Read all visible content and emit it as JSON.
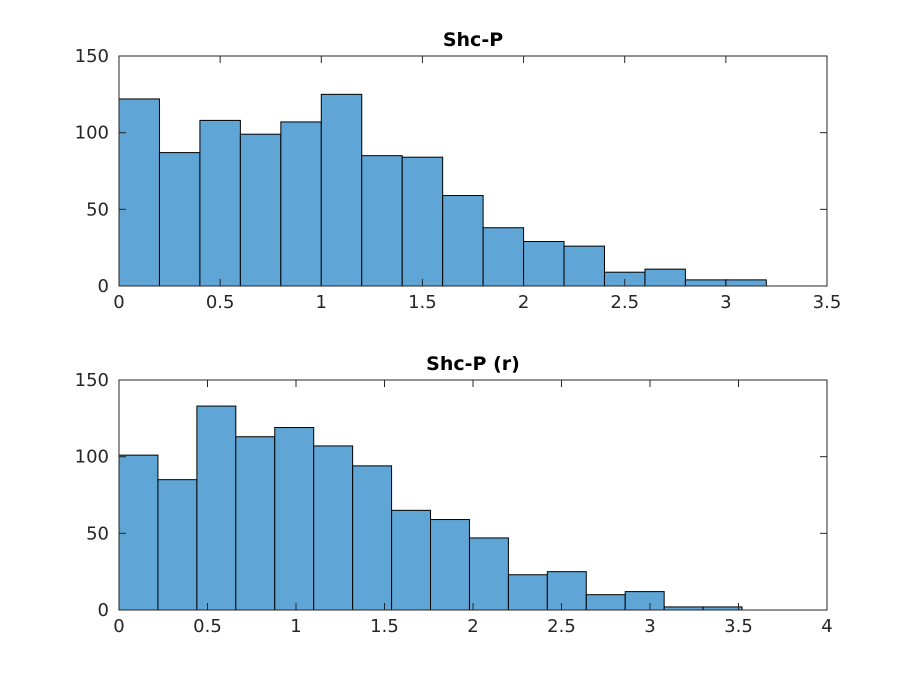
{
  "chart_data": [
    {
      "type": "bar",
      "subtype": "histogram",
      "title": "Shc-P",
      "xlabel": "",
      "ylabel": "",
      "xlim": [
        0,
        3.5
      ],
      "ylim": [
        0,
        150
      ],
      "xticks": [
        "0",
        "0.5",
        "1",
        "1.5",
        "2",
        "2.5",
        "3",
        "3.5"
      ],
      "yticks": [
        "0",
        "50",
        "100",
        "150"
      ],
      "bin_width": 0.2,
      "bin_edges": [
        0,
        0.2,
        0.4,
        0.6,
        0.8,
        1.0,
        1.2,
        1.4,
        1.6,
        1.8,
        2.0,
        2.2,
        2.4,
        2.6,
        2.8,
        3.0,
        3.2
      ],
      "values": [
        122,
        87,
        108,
        99,
        107,
        125,
        85,
        84,
        59,
        38,
        29,
        26,
        9,
        11,
        4,
        4
      ],
      "color": "#5fa5d6"
    },
    {
      "type": "bar",
      "subtype": "histogram",
      "title": "Shc-P (r)",
      "xlabel": "",
      "ylabel": "",
      "xlim": [
        0,
        4
      ],
      "ylim": [
        0,
        150
      ],
      "xticks": [
        "0",
        "0.5",
        "1",
        "1.5",
        "2",
        "2.5",
        "3",
        "3.5",
        "4"
      ],
      "yticks": [
        "0",
        "50",
        "100",
        "150"
      ],
      "bin_width": 0.22,
      "bin_edges": [
        0,
        0.22,
        0.44,
        0.66,
        0.88,
        1.1,
        1.32,
        1.54,
        1.76,
        1.98,
        2.2,
        2.42,
        2.64,
        2.86,
        3.08,
        3.3,
        3.52
      ],
      "values": [
        101,
        85,
        133,
        113,
        119,
        107,
        94,
        65,
        59,
        47,
        23,
        25,
        10,
        12,
        2,
        2
      ],
      "color": "#5fa5d6"
    }
  ]
}
